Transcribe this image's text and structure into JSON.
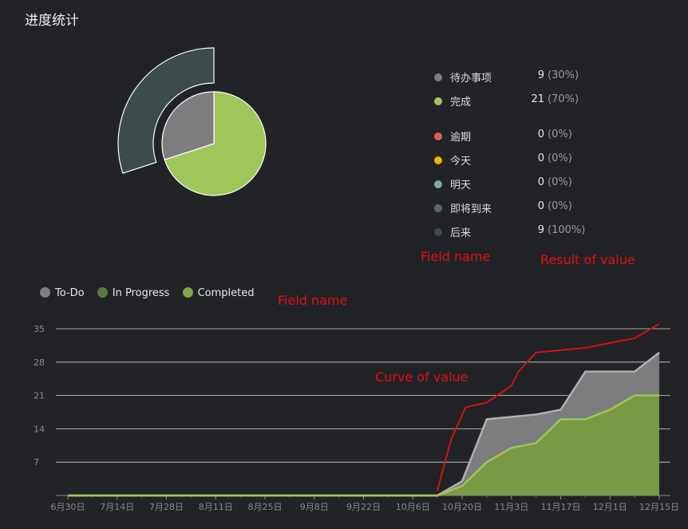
{
  "page": {
    "title": "进度统计"
  },
  "colors": {
    "todo": "#7d7d7f",
    "done": "#9ec65a",
    "overdue": "#e15a5a",
    "today": "#f0b400",
    "tomorrow": "#7fa8a1",
    "upcoming": "#576b6b",
    "later": "#3d4b4c",
    "in_progress": "#5b7a3a",
    "completed": "#7fa64a",
    "curve": "#e01010"
  },
  "status_legend": {
    "items": [
      {
        "label": "待办事项",
        "count": "9",
        "percent": "(30%)",
        "color": "#7d7d7f"
      },
      {
        "label": "完成",
        "count": "21",
        "percent": "(70%)",
        "color": "#9ec65a"
      }
    ],
    "due_items": [
      {
        "label": "逾期",
        "count": "0",
        "percent": "(0%)",
        "color": "#e15a5a"
      },
      {
        "label": "今天",
        "count": "0",
        "percent": "(0%)",
        "color": "#f0b400"
      },
      {
        "label": "明天",
        "count": "0",
        "percent": "(0%)",
        "color": "#7fa8a1"
      },
      {
        "label": "即将到来",
        "count": "0",
        "percent": "(0%)",
        "color": "#576b6b"
      },
      {
        "label": "后来",
        "count": "9",
        "percent": "(100%)",
        "color": "#3d4b4c"
      }
    ]
  },
  "annotations": {
    "field_name_top": "Field name",
    "result_of_value": "Result of value",
    "field_name_bottom": "Field name",
    "curve_of_value": "Curve of value"
  },
  "chart_data": [
    {
      "type": "pie",
      "inner": [
        {
          "label": "待办事项",
          "value": 9,
          "color": "#7d7d7f"
        },
        {
          "label": "完成",
          "value": 21,
          "color": "#9ec65a"
        }
      ],
      "outer": [
        {
          "label": "后来",
          "value": 9,
          "color": "#3d4b4c"
        }
      ]
    },
    {
      "type": "area",
      "legend": [
        "To-Do",
        "In Progress",
        "Completed"
      ],
      "legend_colors": [
        "#7d7d7f",
        "#5b7a3a",
        "#7fa64a"
      ],
      "x_ticks": [
        "6月30日",
        "7月14日",
        "7月28日",
        "8月11日",
        "8月25日",
        "9月8日",
        "9月22日",
        "10月6日",
        "10月20日",
        "11月3日",
        "11月17日",
        "12月1日",
        "12月15日"
      ],
      "y_ticks": [
        7,
        14,
        21,
        28,
        35
      ],
      "ylim": [
        0,
        35
      ],
      "xlim": [
        0,
        168
      ],
      "grid": true,
      "series": [
        {
          "name": "To-Do",
          "x": [
            0,
            105,
            112,
            119,
            133,
            140,
            147,
            161,
            168
          ],
          "y": [
            0,
            0,
            3,
            16,
            17,
            18,
            26,
            26,
            30
          ]
        },
        {
          "name": "Completed",
          "x": [
            0,
            105,
            112,
            119,
            126,
            133,
            140,
            147,
            154,
            161,
            168
          ],
          "y": [
            0,
            0,
            2,
            7,
            10,
            11,
            16,
            16,
            18,
            21,
            21
          ]
        },
        {
          "x": [
            105,
            106,
            109,
            113,
            116,
            119,
            126,
            128,
            133,
            147,
            161,
            168
          ],
          "y": [
            1,
            4,
            12,
            18.5,
            19,
            19.5,
            23,
            26,
            30,
            31,
            33,
            36
          ]
        }
      ]
    }
  ]
}
